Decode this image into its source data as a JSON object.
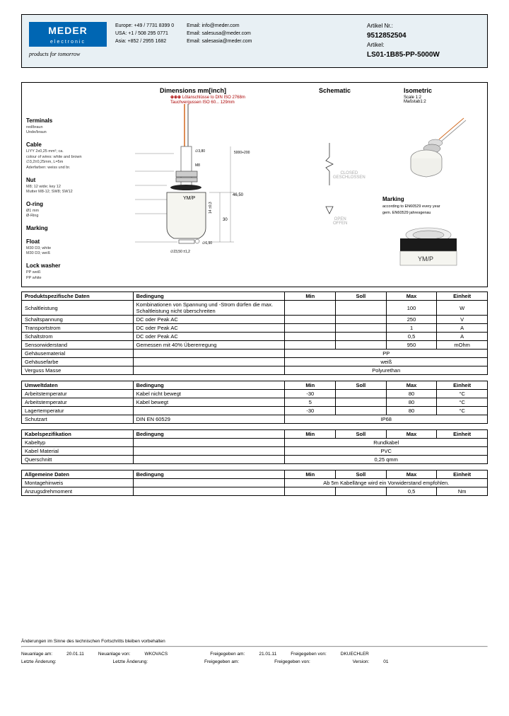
{
  "header": {
    "logo_main": "MEDER",
    "logo_sub": "electronic",
    "tagline": "products for tomorrow",
    "contacts_phone": {
      "europe": "Europe: +49 / 7731 8399 0",
      "usa": "USA: +1 / 508 295 0771",
      "asia": "Asia: +852 / 2955 1682"
    },
    "contacts_email": {
      "europe": "Email: info@meder.com",
      "usa": "Email: salesusa@meder.com",
      "asia": "Email: salesasia@meder.com"
    },
    "article_nr_label": "Artikel Nr.:",
    "article_nr": "9512852504",
    "article_label": "Artikel:",
    "article": "LS01-1B85-PP-5000W"
  },
  "diagram": {
    "dimensions_title": "Dimensions mm[inch]",
    "dim_sub1": "Lötanschlüsse to DIN ISO 2768m",
    "dim_sub2": "Tauchvergussen ISO 60... 129mm",
    "schematic_title": "Schematic",
    "isometric_title": "Isometric",
    "iso_sub": "Scale 1:2\nMaßstab1:2",
    "labels": [
      {
        "title": "Terminals",
        "sub": "red/braun\nUnde/braun"
      },
      {
        "title": "Cable",
        "sub": "LIYY 2x0,25 mm²; ca.\ncolour of wires: white and brown\n∅3,2±0,25mm, L=5m\nAderfarben: weiss und br."
      },
      {
        "title": "Nut",
        "sub": "M8; 12 wide; key 12\nMutter M8-12; SW8; SW12"
      },
      {
        "title": "O-ring",
        "sub": "Ø1 mm\nØ-Ring"
      },
      {
        "title": "Marking",
        "sub": ""
      },
      {
        "title": "Float",
        "sub": "M30 D3; white\nM30 D3; weiß"
      },
      {
        "title": "Lock washer",
        "sub": "PP weiß\nPP white"
      }
    ],
    "schematic_closed": "CLOSED\nGESCHLOSSEN",
    "schematic_open": "OPEN\nOFFEN",
    "marking_title": "Marking",
    "marking_sub": "according to EN60529 every year\ngem. EN60529 jahresgenau"
  },
  "tables": [
    {
      "headers": [
        "Produktspezifische Daten",
        "Bedingung",
        "Min",
        "Soll",
        "Max",
        "Einheit"
      ],
      "rows": [
        [
          "Schaltleistung",
          "Kombinationen von Spannung und -Strom dürfen die max. Schaltleistung nicht überschreiten",
          "",
          "",
          "100",
          "W"
        ],
        [
          "Schaltspannung",
          "DC oder Peak AC",
          "",
          "",
          "250",
          "V"
        ],
        [
          "Transportstrom",
          "DC oder Peak AC",
          "",
          "",
          "1",
          "A"
        ],
        [
          "Schaltstrom",
          "DC oder Peak AC",
          "",
          "",
          "0,5",
          "A"
        ],
        [
          "Sensorwiderstand",
          "Gemessen mit 40% Übererregung",
          "",
          "",
          "950",
          "mOhm"
        ],
        [
          "Gehäusematerial",
          "",
          {
            "span": 4,
            "text": "PP"
          }
        ],
        [
          "Gehäusefarbe",
          "",
          {
            "span": 4,
            "text": "weiß"
          }
        ],
        [
          "Verguss Masse",
          "",
          {
            "span": 4,
            "text": "Polyurethan"
          }
        ]
      ]
    },
    {
      "headers": [
        "Umweltdaten",
        "Bedingung",
        "Min",
        "Soll",
        "Max",
        "Einheit"
      ],
      "rows": [
        [
          "Arbeitstemperatur",
          "Kabel nicht bewegt",
          "-30",
          "",
          "80",
          "°C"
        ],
        [
          "Arbeitstemperatur",
          "Kabel bewegt",
          "5",
          "",
          "80",
          "°C"
        ],
        [
          "Lagertemperatur",
          "",
          "-30",
          "",
          "80",
          "°C"
        ],
        [
          "Schutzart",
          "DIN EN 60529",
          {
            "span": 4,
            "text": "IP68"
          }
        ]
      ]
    },
    {
      "headers": [
        "Kabelspezifikation",
        "Bedingung",
        "Min",
        "Soll",
        "Max",
        "Einheit"
      ],
      "rows": [
        [
          "Kabeltyp",
          "",
          {
            "span": 4,
            "text": "Rundkabel"
          }
        ],
        [
          "Kabel Material",
          "",
          {
            "span": 4,
            "text": "PVC"
          }
        ],
        [
          "Querschnitt",
          "",
          {
            "span": 4,
            "text": "0,25 qmm"
          }
        ]
      ]
    },
    {
      "headers": [
        "Allgemeine Daten",
        "Bedingung",
        "Min",
        "Soll",
        "Max",
        "Einheit"
      ],
      "rows": [
        [
          "Montagehinweis",
          "",
          {
            "span": 4,
            "text": "Ab 5m Kabellänge wird ein Vorwiderstand empfohlen."
          }
        ],
        [
          "Anzugsdrehmoment",
          "",
          "",
          "",
          "0,5",
          "Nm"
        ]
      ]
    }
  ],
  "footer": {
    "disclaimer": "Änderungen im Sinne des technischen Fortschritts bleiben vorbehalten",
    "row1": {
      "neu_am_label": "Neuanlage am:",
      "neu_am": "20.01.11",
      "neu_von_label": "Neuanlage von:",
      "neu_von": "WKOVACS",
      "frei_am_label": "Freigegeben am:",
      "frei_am": "21.01.11",
      "frei_von_label": "Freigegeben von:",
      "frei_von": "DKUECHLER"
    },
    "row2": {
      "letzte_label": "Letzte Änderung:",
      "letzte": "",
      "letzte2_label": "Letzte Änderung:",
      "frei_am2": "Freigegeben am:",
      "frei_von2": "Freigegeben von:",
      "version_label": "Version:",
      "version": "01"
    }
  },
  "colors": {
    "logo_bg": "#0066b3",
    "header_bg": "#e8f0f4",
    "border": "#000000",
    "red_text": "#a00000"
  }
}
